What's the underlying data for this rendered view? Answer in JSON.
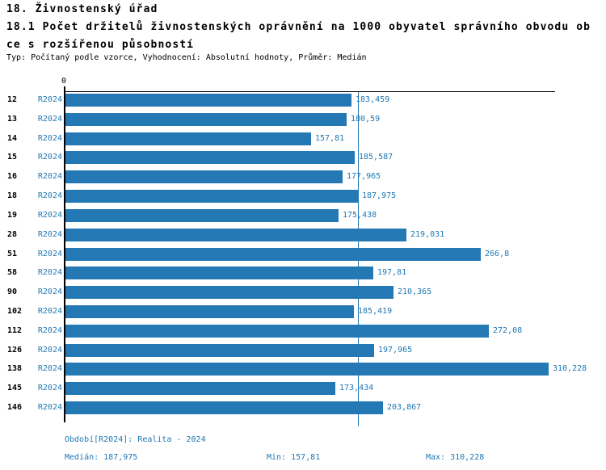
{
  "header": {
    "section_title": "18. Živnostenský úřad",
    "chart_title_line1": "18.1 Počet držitelů živnostenských oprávnění na 1000 obyvatel správního obvodu ob",
    "chart_title_line2": "ce s rozšířenou působností",
    "meta": "Typ: Počítaný podle vzorce, Vyhodnocení: Absolutní hodnoty, Průměr: Medián"
  },
  "chart_data": {
    "type": "bar",
    "orientation": "horizontal",
    "title": "18.1 Počet držitelů živnostenských oprávnění na 1000 obyvatel správního obvodu obce s rozšířenou působností",
    "axis_origin_label": "0",
    "series_label": "R2024",
    "categories": [
      "12",
      "13",
      "14",
      "15",
      "16",
      "18",
      "19",
      "28",
      "51",
      "58",
      "90",
      "102",
      "112",
      "126",
      "138",
      "145",
      "146"
    ],
    "values": [
      183.459,
      180.59,
      157.81,
      185.587,
      177.965,
      187.975,
      175.438,
      219.031,
      266.8,
      197.81,
      210.365,
      185.419,
      272.08,
      197.965,
      310.228,
      173.434,
      203.867
    ],
    "display_values": [
      "183,459",
      "180,59",
      "157,81",
      "185,587",
      "177,965",
      "187,975",
      "175,438",
      "219,031",
      "266,8",
      "197,81",
      "210,365",
      "185,419",
      "272,08",
      "197,965",
      "310,228",
      "173,434",
      "203,867"
    ],
    "median": 187.975,
    "min": 157.81,
    "max": 310.228,
    "xlim": [
      0,
      314
    ],
    "grid": false,
    "legend_position": "none",
    "bar_color": "#2478b4",
    "median_line_color": "#2478b4",
    "label_color": "#1f77b4"
  },
  "footer": {
    "period": "Období[R2024]: Realita - 2024",
    "median": "Medián: 187,975",
    "min": "Min: 157,81",
    "max": "Max: 310,228"
  }
}
